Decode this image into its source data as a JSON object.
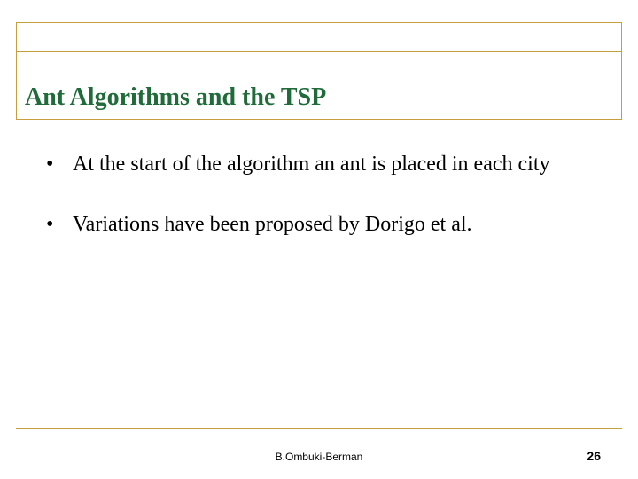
{
  "slide": {
    "title": "Ant Algorithms and the TSP",
    "title_color": "#1f6b3a",
    "title_fontsize_pt": 28,
    "rule_color": "#c69e3b",
    "background_color": "#ffffff",
    "bullets": [
      {
        "text": "At the start of the algorithm an ant is placed in each city"
      },
      {
        "text": "Variations have been proposed  by Dorigo et al."
      }
    ],
    "body_fontsize_pt": 24,
    "body_color": "#000000",
    "footer": {
      "author": "B.Ombuki-Berman",
      "page_number": "26",
      "font_family": "Arial",
      "author_fontsize_pt": 12,
      "page_fontsize_pt": 14
    }
  }
}
